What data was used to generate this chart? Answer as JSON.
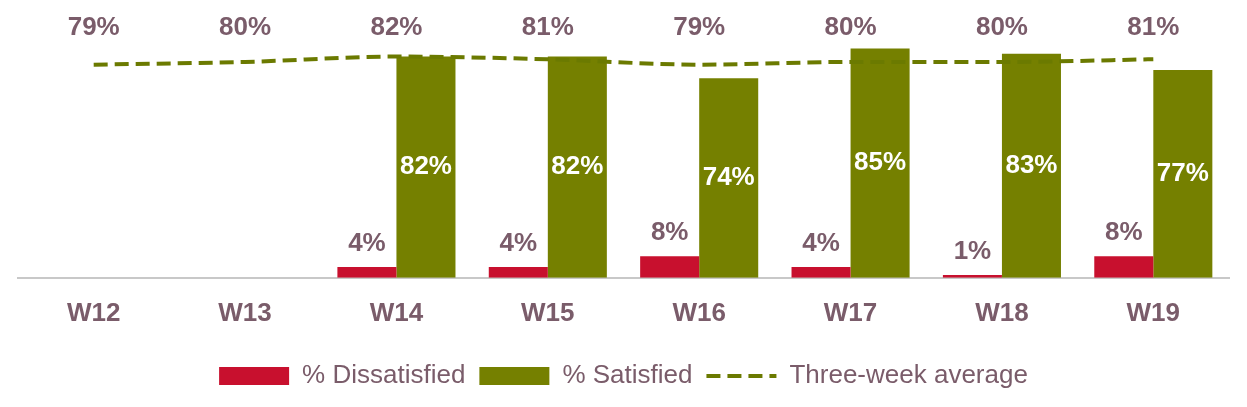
{
  "chart_data": {
    "type": "bar",
    "categories": [
      "W12",
      "W13",
      "W14",
      "W15",
      "W16",
      "W17",
      "W18",
      "W19"
    ],
    "legend": "bottom",
    "grid": false,
    "series": [
      {
        "name": "% Dissatisfied",
        "color": "#c8102e",
        "values": [
          null,
          null,
          4,
          4,
          8,
          4,
          1,
          8
        ],
        "value_labels": [
          null,
          null,
          "4%",
          "4%",
          "8%",
          "4%",
          "1%",
          "8%"
        ]
      },
      {
        "name": "% Satisfied",
        "color": "#758000",
        "values": [
          null,
          null,
          82,
          82,
          74,
          85,
          83,
          77
        ],
        "value_labels": [
          null,
          null,
          "82%",
          "82%",
          "74%",
          "85%",
          "83%",
          "77%"
        ]
      },
      {
        "name": "Three-week average",
        "type": "line",
        "line_style": "dashed",
        "marker": "none",
        "color": "#6b7a00",
        "values": [
          79,
          80,
          82,
          81,
          79,
          80,
          80,
          81
        ],
        "value_labels": [
          "79%",
          "80%",
          "82%",
          "81%",
          "79%",
          "80%",
          "80%",
          "81%"
        ]
      }
    ]
  }
}
